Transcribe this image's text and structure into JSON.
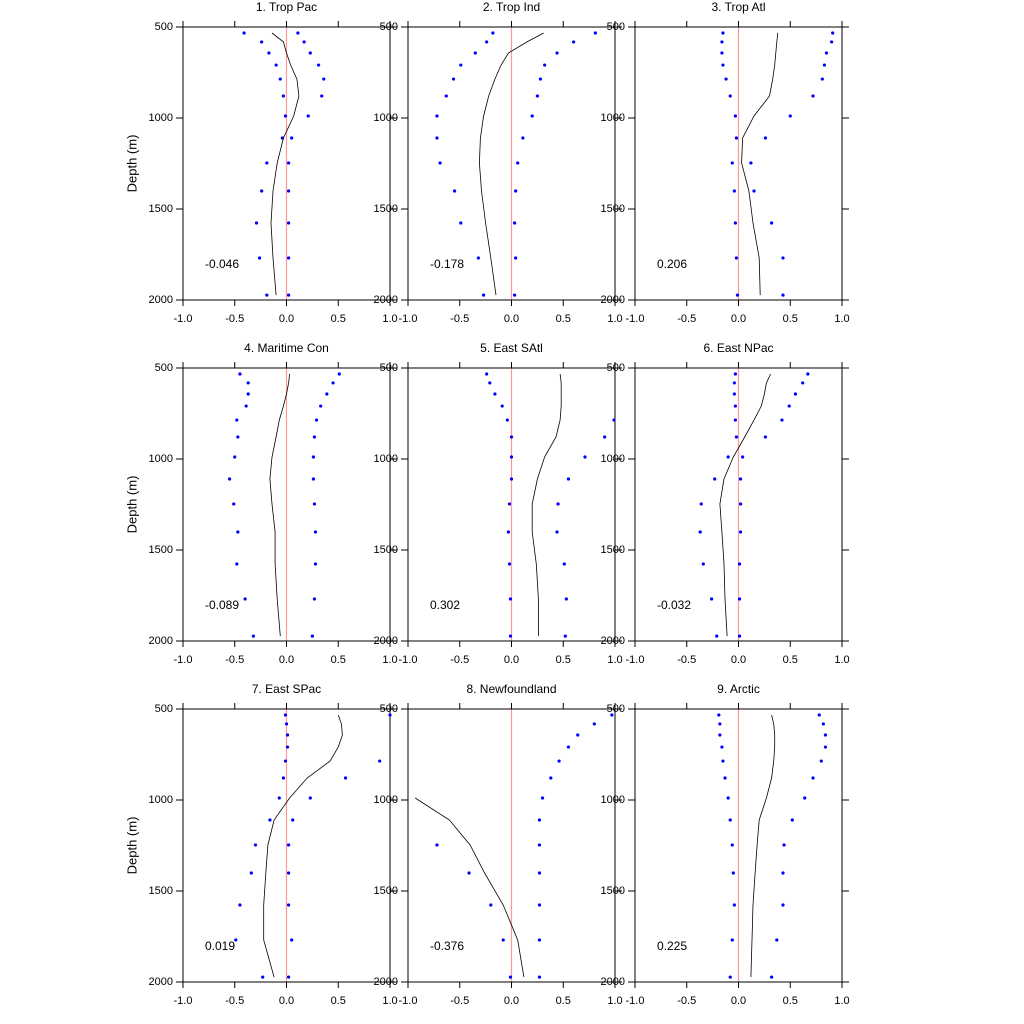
{
  "chart_data": [
    {
      "type": "line",
      "title": "1. Trop Pac",
      "ylabel": "Depth (m)",
      "annotation": "-0.046",
      "y": [
        533,
        582,
        643,
        709,
        786,
        879,
        989,
        1110,
        1247,
        1401,
        1577,
        1769,
        1973
      ],
      "series": [
        {
          "mode": "markers",
          "color": "#0000ff",
          "values": [
            -0.41,
            -0.24,
            -0.17,
            -0.1,
            -0.06,
            -0.03,
            -0.01,
            -0.04,
            -0.19,
            -0.24,
            -0.29,
            -0.26,
            -0.19
          ]
        },
        {
          "mode": "markers",
          "color": "#0000ff",
          "values": [
            0.11,
            0.17,
            0.23,
            0.31,
            0.36,
            0.34,
            0.21,
            0.05,
            0.02,
            0.02,
            0.02,
            0.02,
            0.02
          ]
        },
        {
          "mode": "lines",
          "color": "#000000",
          "values": [
            -0.14,
            -0.03,
            0.0,
            0.04,
            0.1,
            0.12,
            0.07,
            -0.03,
            -0.09,
            -0.13,
            -0.15,
            -0.13,
            -0.1
          ]
        }
      ],
      "reference_line": {
        "value": 0,
        "color": "#ff9999"
      },
      "xlim": [
        -1,
        1
      ],
      "xticks": [
        {
          "value": -1,
          "label": "-1.0"
        },
        -0.5,
        {
          "value": 0,
          "label": "0.0"
        },
        0.5,
        {
          "value": 1,
          "label": "1.0"
        }
      ],
      "ylim": [
        500,
        2000
      ],
      "yticks": [
        500,
        1000,
        1500,
        2000
      ],
      "y_reversed": true
    },
    {
      "type": "line",
      "title": "2. Trop Ind",
      "annotation": "-0.178",
      "y": [
        533,
        582,
        643,
        709,
        786,
        879,
        989,
        1110,
        1247,
        1401,
        1577,
        1769,
        1973
      ],
      "series": [
        {
          "mode": "markers",
          "color": "#0000ff",
          "values": [
            -0.18,
            -0.24,
            -0.35,
            -0.49,
            -0.56,
            -0.63,
            -0.72,
            -0.72,
            -0.69,
            -0.55,
            -0.49,
            -0.32,
            -0.27
          ]
        },
        {
          "mode": "markers",
          "color": "#0000ff",
          "values": [
            0.81,
            0.6,
            0.44,
            0.32,
            0.28,
            0.25,
            0.2,
            0.11,
            0.06,
            0.04,
            0.03,
            0.04,
            0.03
          ]
        },
        {
          "mode": "lines",
          "color": "#000000",
          "values": [
            0.31,
            0.15,
            -0.03,
            -0.1,
            -0.16,
            -0.22,
            -0.27,
            -0.3,
            -0.31,
            -0.29,
            -0.25,
            -0.2,
            -0.15
          ]
        }
      ],
      "reference_line": {
        "value": 0,
        "color": "#ff9999"
      },
      "xlim": [
        -1,
        1
      ],
      "xticks": [
        {
          "value": -1,
          "label": "-1.0"
        },
        -0.5,
        {
          "value": 0,
          "label": "0.0"
        },
        0.5,
        {
          "value": 1,
          "label": "1.0"
        }
      ],
      "ylim": [
        500,
        2000
      ],
      "yticks": [
        500,
        1000,
        1500,
        2000
      ],
      "y_reversed": true
    },
    {
      "type": "line",
      "title": "3. Trop Atl",
      "annotation": "0.206",
      "y": [
        533,
        582,
        643,
        709,
        786,
        879,
        989,
        1110,
        1247,
        1401,
        1577,
        1769,
        1973
      ],
      "series": [
        {
          "mode": "markers",
          "color": "#0000ff",
          "values": [
            -0.15,
            -0.16,
            -0.16,
            -0.15,
            -0.12,
            -0.08,
            -0.03,
            -0.02,
            -0.06,
            -0.04,
            -0.03,
            -0.02,
            -0.01
          ]
        },
        {
          "mode": "markers",
          "color": "#0000ff",
          "values": [
            0.91,
            0.9,
            0.85,
            0.83,
            0.81,
            0.72,
            0.5,
            0.26,
            0.12,
            0.15,
            0.32,
            0.43,
            0.43
          ]
        },
        {
          "mode": "lines",
          "color": "#000000",
          "values": [
            0.38,
            0.37,
            0.36,
            0.35,
            0.33,
            0.3,
            0.15,
            0.04,
            0.03,
            0.1,
            0.14,
            0.2,
            0.21
          ]
        }
      ],
      "reference_line": {
        "value": 0,
        "color": "#ff9999"
      },
      "xlim": [
        -1,
        1
      ],
      "xticks": [
        {
          "value": -1,
          "label": "-1.0"
        },
        -0.5,
        {
          "value": 0,
          "label": "0.0"
        },
        0.5,
        {
          "value": 1,
          "label": "1.0"
        }
      ],
      "ylim": [
        500,
        2000
      ],
      "yticks": [
        500,
        1000,
        1500,
        2000
      ],
      "y_reversed": true
    },
    {
      "type": "line",
      "title": "4. Maritime Con",
      "ylabel": "Depth (m)",
      "annotation": "-0.089",
      "y": [
        533,
        582,
        643,
        709,
        786,
        879,
        989,
        1110,
        1247,
        1401,
        1577,
        1769,
        1973
      ],
      "series": [
        {
          "mode": "markers",
          "color": "#0000ff",
          "values": [
            -0.45,
            -0.37,
            -0.37,
            -0.39,
            -0.48,
            -0.47,
            -0.5,
            -0.55,
            -0.51,
            -0.47,
            -0.48,
            -0.4,
            -0.32
          ]
        },
        {
          "mode": "markers",
          "color": "#0000ff",
          "values": [
            0.51,
            0.45,
            0.39,
            0.33,
            0.29,
            0.27,
            0.26,
            0.26,
            0.27,
            0.28,
            0.28,
            0.27,
            0.25
          ]
        },
        {
          "mode": "lines",
          "color": "#000000",
          "values": [
            0.03,
            0.02,
            0.0,
            -0.03,
            -0.07,
            -0.1,
            -0.14,
            -0.16,
            -0.14,
            -0.11,
            -0.11,
            -0.09,
            -0.06
          ]
        }
      ],
      "reference_line": {
        "value": 0,
        "color": "#ff9999"
      },
      "xlim": [
        -1,
        1
      ],
      "xticks": [
        {
          "value": -1,
          "label": "-1.0"
        },
        -0.5,
        {
          "value": 0,
          "label": "0.0"
        },
        0.5,
        {
          "value": 1,
          "label": "1.0"
        }
      ],
      "ylim": [
        500,
        2000
      ],
      "yticks": [
        500,
        1000,
        1500,
        2000
      ],
      "y_reversed": true
    },
    {
      "type": "line",
      "title": "5. East SAtl",
      "annotation": "0.302",
      "y": [
        533,
        582,
        643,
        709,
        786,
        879,
        989,
        1110,
        1247,
        1401,
        1577,
        1769,
        1973
      ],
      "series": [
        {
          "mode": "markers",
          "color": "#0000ff",
          "values": [
            -0.24,
            -0.21,
            -0.16,
            -0.09,
            -0.04,
            0.0,
            0.0,
            0.0,
            -0.02,
            -0.03,
            -0.02,
            -0.01,
            -0.01
          ]
        },
        {
          "mode": "markers",
          "color": "#0000ff",
          "values": [
            null,
            null,
            null,
            null,
            0.99,
            0.9,
            0.71,
            0.55,
            0.45,
            0.44,
            0.51,
            0.53,
            0.52
          ]
        },
        {
          "mode": "lines",
          "color": "#000000",
          "values": [
            0.47,
            0.48,
            0.48,
            0.48,
            0.47,
            0.43,
            0.32,
            0.25,
            0.2,
            0.2,
            0.24,
            0.26,
            0.26
          ]
        }
      ],
      "reference_line": {
        "value": 0,
        "color": "#ff9999"
      },
      "xlim": [
        -1,
        1
      ],
      "xticks": [
        {
          "value": -1,
          "label": "-1.0"
        },
        -0.5,
        {
          "value": 0,
          "label": "0.0"
        },
        0.5,
        {
          "value": 1,
          "label": "1.0"
        }
      ],
      "ylim": [
        500,
        2000
      ],
      "yticks": [
        500,
        1000,
        1500,
        2000
      ],
      "y_reversed": true
    },
    {
      "type": "line",
      "title": "6. East NPac",
      "annotation": "-0.032",
      "y": [
        533,
        582,
        643,
        709,
        786,
        879,
        989,
        1110,
        1247,
        1401,
        1577,
        1769,
        1973
      ],
      "series": [
        {
          "mode": "markers",
          "color": "#0000ff",
          "values": [
            -0.03,
            -0.04,
            -0.04,
            -0.03,
            -0.03,
            -0.02,
            -0.1,
            -0.23,
            -0.36,
            -0.37,
            -0.34,
            -0.26,
            -0.21
          ]
        },
        {
          "mode": "markers",
          "color": "#0000ff",
          "values": [
            0.67,
            0.62,
            0.55,
            0.49,
            0.42,
            0.26,
            0.04,
            0.02,
            0.02,
            0.02,
            0.01,
            0.01,
            0.01
          ]
        },
        {
          "mode": "lines",
          "color": "#000000",
          "values": [
            0.31,
            0.27,
            0.25,
            0.22,
            0.15,
            0.06,
            -0.05,
            -0.14,
            -0.18,
            -0.16,
            -0.14,
            -0.13,
            -0.11
          ]
        }
      ],
      "reference_line": {
        "value": 0,
        "color": "#ff9999"
      },
      "xlim": [
        -1,
        1
      ],
      "xticks": [
        {
          "value": -1,
          "label": "-1.0"
        },
        -0.5,
        {
          "value": 0,
          "label": "0.0"
        },
        0.5,
        {
          "value": 1,
          "label": "1.0"
        }
      ],
      "ylim": [
        500,
        2000
      ],
      "yticks": [
        500,
        1000,
        1500,
        2000
      ],
      "y_reversed": true
    },
    {
      "type": "line",
      "title": "7. East SPac",
      "ylabel": "Depth (m)",
      "annotation": "0.019",
      "y": [
        533,
        582,
        643,
        709,
        786,
        879,
        989,
        1110,
        1247,
        1401,
        1577,
        1769,
        1973
      ],
      "series": [
        {
          "mode": "markers",
          "color": "#0000ff",
          "values": [
            -0.01,
            0.0,
            0.01,
            0.01,
            -0.01,
            -0.03,
            -0.07,
            -0.16,
            -0.3,
            -0.34,
            -0.45,
            -0.49,
            -0.23
          ]
        },
        {
          "mode": "markers",
          "color": "#0000ff",
          "values": [
            1.0,
            null,
            null,
            null,
            0.9,
            0.57,
            0.23,
            0.06,
            0.02,
            0.02,
            0.02,
            0.05,
            0.02
          ]
        },
        {
          "mode": "lines",
          "color": "#000000",
          "values": [
            0.5,
            0.53,
            0.54,
            0.5,
            0.42,
            0.2,
            0.03,
            -0.12,
            -0.18,
            -0.2,
            -0.22,
            -0.22,
            -0.12
          ]
        }
      ],
      "reference_line": {
        "value": 0,
        "color": "#ff9999"
      },
      "xlim": [
        -1,
        1
      ],
      "xticks": [
        {
          "value": -1,
          "label": "-1.0"
        },
        -0.5,
        {
          "value": 0,
          "label": "0.0"
        },
        0.5,
        {
          "value": 1,
          "label": "1.0"
        }
      ],
      "ylim": [
        500,
        2000
      ],
      "yticks": [
        500,
        1000,
        1500,
        2000
      ],
      "y_reversed": true
    },
    {
      "type": "line",
      "title": "8. Newfoundland",
      "annotation": "-0.376",
      "y": [
        533,
        582,
        643,
        709,
        786,
        879,
        989,
        1110,
        1247,
        1401,
        1577,
        1769,
        1973
      ],
      "series": [
        {
          "mode": "markers",
          "color": "#0000ff",
          "values": [
            null,
            null,
            null,
            null,
            null,
            null,
            null,
            null,
            -0.72,
            -0.41,
            -0.2,
            -0.08,
            -0.01
          ]
        },
        {
          "mode": "markers",
          "color": "#0000ff",
          "values": [
            0.97,
            0.8,
            0.64,
            0.55,
            0.46,
            0.38,
            0.3,
            0.27,
            0.27,
            0.27,
            0.27,
            0.27,
            0.27
          ]
        },
        {
          "mode": "lines",
          "color": "#000000",
          "values": [
            null,
            null,
            null,
            null,
            null,
            null,
            -0.93,
            -0.6,
            -0.4,
            -0.26,
            -0.08,
            0.06,
            0.12
          ]
        }
      ],
      "reference_line": {
        "value": 0,
        "color": "#ff9999"
      },
      "xlim": [
        -1,
        1
      ],
      "xticks": [
        {
          "value": -1,
          "label": "-1.0"
        },
        -0.5,
        {
          "value": 0,
          "label": "0.0"
        },
        0.5,
        {
          "value": 1,
          "label": "1.0"
        }
      ],
      "ylim": [
        500,
        2000
      ],
      "yticks": [
        500,
        1000,
        1500,
        2000
      ],
      "y_reversed": true
    },
    {
      "type": "line",
      "title": "9. Arctic",
      "annotation": "0.225",
      "y": [
        533,
        582,
        643,
        709,
        786,
        879,
        989,
        1110,
        1247,
        1401,
        1577,
        1769,
        1973
      ],
      "series": [
        {
          "mode": "markers",
          "color": "#0000ff",
          "values": [
            -0.19,
            -0.18,
            -0.18,
            -0.16,
            -0.15,
            -0.13,
            -0.1,
            -0.08,
            -0.06,
            -0.05,
            -0.04,
            -0.06,
            -0.08
          ]
        },
        {
          "mode": "markers",
          "color": "#0000ff",
          "values": [
            0.78,
            0.82,
            0.84,
            0.84,
            0.8,
            0.72,
            0.64,
            0.52,
            0.44,
            0.43,
            0.43,
            0.37,
            0.32
          ]
        },
        {
          "mode": "lines",
          "color": "#000000",
          "values": [
            0.32,
            0.34,
            0.35,
            0.35,
            0.34,
            0.32,
            0.27,
            0.2,
            0.18,
            0.16,
            0.14,
            0.13,
            0.12
          ]
        }
      ],
      "reference_line": {
        "value": 0,
        "color": "#ff9999"
      },
      "xlim": [
        -1,
        1
      ],
      "xticks": [
        {
          "value": -1,
          "label": "-1.0"
        },
        -0.5,
        {
          "value": 0,
          "label": "0.0"
        },
        0.5,
        {
          "value": 1,
          "label": "1.0"
        }
      ],
      "ylim": [
        500,
        2000
      ],
      "yticks": [
        500,
        1000,
        1500,
        2000
      ],
      "y_reversed": true
    }
  ]
}
